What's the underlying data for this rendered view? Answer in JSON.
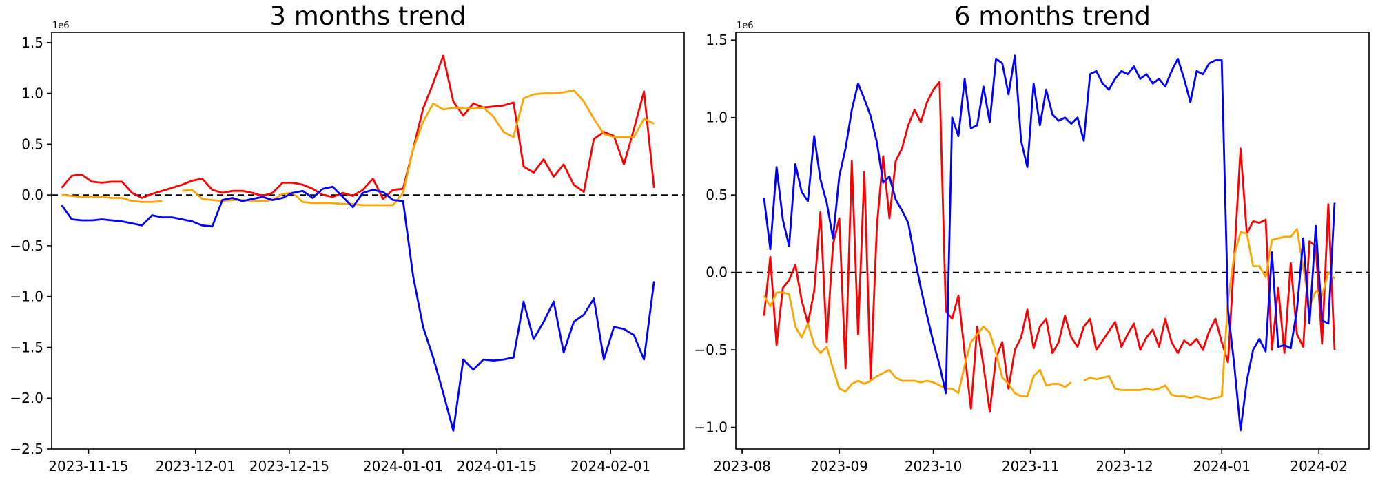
{
  "figure": {
    "background": "#ffffff",
    "text_color": "#000000"
  },
  "chart_data": [
    {
      "type": "line",
      "title": "3 months trend",
      "y_offset_label": "1e6",
      "y_unit_multiplier": 1000000,
      "ylim": [
        -2.5,
        1.6
      ],
      "yticks": [
        1.5,
        1.0,
        0.5,
        0.0,
        -0.5,
        -1.0,
        -1.5,
        -2.0,
        -2.5
      ],
      "grid": false,
      "legend": null,
      "zero_line": {
        "style": "dashed",
        "color": "#000000",
        "value": 0
      },
      "x_start_date": "2023-11-11",
      "x_end_date": "2024-02-07",
      "x_step_days": 1.5,
      "xlim_days": [
        -1.5,
        93
      ],
      "xticks": [
        {
          "day": 4,
          "label": "2023-11-15"
        },
        {
          "day": 20,
          "label": "2023-12-01"
        },
        {
          "day": 34,
          "label": "2023-12-15"
        },
        {
          "day": 51,
          "label": "2024-01-01"
        },
        {
          "day": 65,
          "label": "2024-01-15"
        },
        {
          "day": 82,
          "label": "2024-02-01"
        }
      ],
      "series": [
        {
          "name": "red",
          "color": "#ff0000",
          "values_1e6": [
            0.07,
            0.19,
            0.2,
            0.13,
            0.12,
            0.13,
            0.13,
            0.02,
            -0.03,
            0.01,
            0.04,
            0.07,
            0.1,
            0.14,
            0.16,
            0.05,
            0.02,
            0.04,
            0.04,
            0.02,
            -0.01,
            0.02,
            0.12,
            0.12,
            0.1,
            0.06,
            0.0,
            -0.02,
            0.02,
            -0.01,
            0.05,
            0.16,
            -0.04,
            0.05,
            0.06,
            0.45,
            0.85,
            1.1,
            1.37,
            0.92,
            0.78,
            0.9,
            0.86,
            0.87,
            0.88,
            0.91,
            0.28,
            0.22,
            0.35,
            0.18,
            0.3,
            0.1,
            0.03,
            0.55,
            0.62,
            0.58,
            0.3,
            0.65,
            1.02,
            0.07
          ]
        },
        {
          "name": "orange",
          "color": "#ffa500",
          "values_1e6": [
            0.0,
            -0.01,
            -0.02,
            -0.02,
            -0.02,
            -0.03,
            -0.03,
            -0.06,
            -0.07,
            -0.07,
            -0.06,
            null,
            0.04,
            0.05,
            -0.04,
            -0.05,
            -0.06,
            -0.05,
            -0.05,
            -0.06,
            -0.06,
            -0.05,
            0.01,
            0.02,
            -0.07,
            -0.08,
            -0.08,
            -0.08,
            -0.09,
            -0.09,
            -0.1,
            -0.1,
            -0.1,
            -0.1,
            0.02,
            0.45,
            0.72,
            0.9,
            0.84,
            0.86,
            0.85,
            0.85,
            0.86,
            0.77,
            0.62,
            0.57,
            0.95,
            0.99,
            1.0,
            1.0,
            1.01,
            1.03,
            0.92,
            0.75,
            0.6,
            0.57,
            0.57,
            0.57,
            0.75,
            0.7
          ]
        },
        {
          "name": "blue",
          "color": "#0000ff",
          "values_1e6": [
            -0.1,
            -0.24,
            -0.25,
            -0.25,
            -0.24,
            -0.25,
            -0.26,
            -0.28,
            -0.3,
            -0.2,
            -0.22,
            -0.22,
            -0.24,
            -0.26,
            -0.3,
            -0.31,
            -0.05,
            -0.03,
            -0.06,
            -0.04,
            -0.02,
            -0.05,
            -0.03,
            0.02,
            0.04,
            -0.03,
            0.06,
            0.08,
            -0.02,
            -0.12,
            0.02,
            0.05,
            0.03,
            -0.05,
            -0.06,
            -0.8,
            -1.3,
            -1.6,
            -1.95,
            -2.32,
            -1.62,
            -1.72,
            -1.62,
            -1.63,
            -1.62,
            -1.6,
            -1.05,
            -1.42,
            -1.25,
            -1.05,
            -1.55,
            -1.25,
            -1.18,
            -1.02,
            -1.62,
            -1.3,
            -1.32,
            -1.38,
            -1.62,
            -0.85
          ]
        }
      ]
    },
    {
      "type": "line",
      "title": "6 months trend",
      "y_offset_label": "1e6",
      "y_unit_multiplier": 1000000,
      "ylim": [
        -1.14,
        1.55
      ],
      "yticks": [
        1.5,
        1.0,
        0.5,
        0.0,
        -0.5,
        -1.0
      ],
      "grid": false,
      "legend": null,
      "zero_line": {
        "style": "dashed",
        "color": "#000000",
        "value": 0
      },
      "x_start_date": "2023-08-08",
      "x_end_date": "2024-02-06",
      "x_step_days": 2,
      "xlim_days": [
        -9,
        193
      ],
      "xticks": [
        {
          "day": -7,
          "label": "2023-08"
        },
        {
          "day": 24,
          "label": "2023-09"
        },
        {
          "day": 54,
          "label": "2023-10"
        },
        {
          "day": 85,
          "label": "2023-11"
        },
        {
          "day": 115,
          "label": "2023-12"
        },
        {
          "day": 146,
          "label": "2024-01"
        },
        {
          "day": 177,
          "label": "2024-02"
        }
      ],
      "series": [
        {
          "name": "red",
          "color": "#ff0000",
          "values_1e6": [
            -0.28,
            0.1,
            -0.47,
            -0.1,
            -0.05,
            0.05,
            -0.18,
            -0.33,
            -0.12,
            0.39,
            -0.45,
            0.18,
            0.35,
            -0.62,
            0.72,
            -0.4,
            0.65,
            -0.7,
            0.3,
            0.75,
            0.35,
            0.72,
            0.8,
            0.95,
            1.05,
            0.97,
            1.1,
            1.18,
            1.23,
            -0.25,
            -0.3,
            -0.15,
            -0.52,
            -0.88,
            -0.35,
            -0.6,
            -0.9,
            -0.55,
            -0.45,
            -0.75,
            -0.5,
            -0.42,
            -0.24,
            -0.49,
            -0.35,
            -0.3,
            -0.52,
            -0.45,
            -0.28,
            -0.42,
            -0.48,
            -0.35,
            -0.3,
            -0.5,
            -0.44,
            -0.38,
            -0.32,
            -0.48,
            -0.4,
            -0.33,
            -0.5,
            -0.42,
            -0.37,
            -0.48,
            -0.3,
            -0.45,
            -0.52,
            -0.44,
            -0.47,
            -0.43,
            -0.5,
            -0.38,
            -0.3,
            -0.45,
            -0.58,
            0.1,
            0.8,
            0.25,
            0.33,
            0.32,
            0.34,
            -0.5,
            -0.1,
            -0.52,
            0.06,
            -0.4,
            -0.48,
            0.2,
            0.17,
            -0.46,
            0.44,
            -0.5
          ]
        },
        {
          "name": "orange",
          "color": "#ffa500",
          "values_1e6": [
            -0.15,
            -0.22,
            -0.13,
            -0.13,
            -0.14,
            -0.35,
            -0.42,
            -0.33,
            -0.47,
            -0.52,
            -0.48,
            -0.62,
            -0.75,
            -0.77,
            -0.72,
            -0.7,
            -0.72,
            -0.7,
            -0.67,
            -0.65,
            -0.63,
            -0.68,
            -0.7,
            -0.7,
            -0.7,
            -0.71,
            -0.7,
            -0.71,
            -0.73,
            -0.75,
            -0.75,
            -0.78,
            -0.6,
            -0.45,
            -0.4,
            -0.35,
            -0.39,
            -0.52,
            -0.68,
            -0.72,
            -0.78,
            -0.8,
            -0.8,
            -0.67,
            -0.63,
            -0.73,
            -0.72,
            -0.72,
            -0.74,
            -0.71,
            null,
            -0.7,
            -0.68,
            -0.69,
            -0.68,
            -0.67,
            -0.75,
            -0.76,
            -0.76,
            -0.76,
            -0.76,
            -0.75,
            -0.76,
            -0.75,
            -0.73,
            -0.79,
            -0.8,
            -0.8,
            -0.81,
            -0.8,
            -0.81,
            -0.82,
            -0.81,
            -0.8,
            -0.18,
            0.11,
            0.26,
            0.25,
            0.04,
            0.04,
            -0.03,
            0.21,
            0.22,
            0.23,
            0.23,
            0.28,
            0.03,
            -0.22,
            -0.12,
            -0.15,
            0.0,
            -0.04
          ]
        },
        {
          "name": "blue",
          "color": "#0000ff",
          "values_1e6": [
            0.48,
            0.15,
            0.68,
            0.34,
            0.17,
            0.7,
            0.52,
            0.46,
            0.88,
            0.6,
            0.45,
            0.22,
            0.62,
            0.8,
            1.05,
            1.22,
            1.12,
            1.01,
            0.84,
            0.58,
            0.62,
            0.47,
            0.4,
            0.32,
            0.1,
            -0.1,
            -0.28,
            -0.45,
            -0.6,
            -0.78,
            1.0,
            0.88,
            1.25,
            0.93,
            0.95,
            1.2,
            0.97,
            1.38,
            1.35,
            1.15,
            1.4,
            0.85,
            0.68,
            1.22,
            0.95,
            1.18,
            1.02,
            0.98,
            1.0,
            0.96,
            1.0,
            0.85,
            1.28,
            1.3,
            1.22,
            1.18,
            1.25,
            1.3,
            1.28,
            1.33,
            1.25,
            1.28,
            1.22,
            1.25,
            1.2,
            1.3,
            1.38,
            1.25,
            1.1,
            1.3,
            1.28,
            1.35,
            1.37,
            1.37,
            -0.24,
            -0.6,
            -1.02,
            -0.7,
            -0.5,
            -0.43,
            -0.51,
            0.13,
            -0.48,
            -0.47,
            -0.49,
            -0.24,
            0.22,
            -0.33,
            0.3,
            -0.31,
            -0.33,
            0.45
          ]
        }
      ]
    }
  ]
}
